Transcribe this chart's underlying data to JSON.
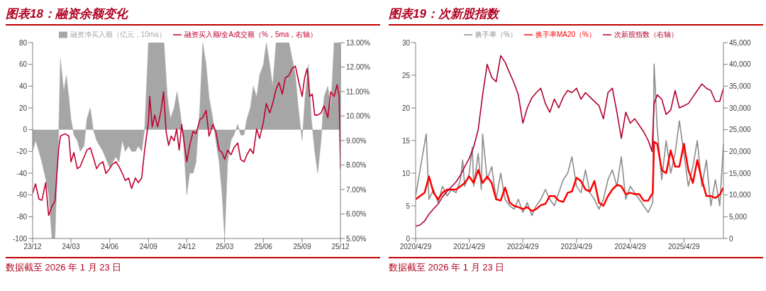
{
  "chart_data": [
    {
      "type": "area",
      "title": "图表18：融资余额变化",
      "legend": "top",
      "annotations": [
        "数据截至 2026 年 1 月 23 日"
      ],
      "xlim": [
        "2023-12-01",
        "2025-12-01"
      ],
      "xticks": [
        {
          "value": "2023-12-01",
          "label": "23/12"
        },
        {
          "value": "2024-03-01",
          "label": "24/03"
        },
        {
          "value": "2024-06-01",
          "label": "24/06"
        },
        {
          "value": "2024-09-01",
          "label": "24/09"
        },
        {
          "value": "2024-12-01",
          "label": "24/12"
        },
        {
          "value": "2025-03-01",
          "label": "25/03"
        },
        {
          "value": "2025-06-01",
          "label": "25/06"
        },
        {
          "value": "2025-09-01",
          "label": "25/09"
        },
        {
          "value": "2025-12-01",
          "label": "25/12"
        }
      ],
      "ylim": [
        -100,
        80
      ],
      "yticks": [
        -100,
        -80,
        -60,
        -40,
        -20,
        0,
        20,
        40,
        60,
        80
      ],
      "y2lim": [
        5,
        13
      ],
      "y2ticks": [
        {
          "value": 5,
          "label": "5.00%"
        },
        {
          "value": 6,
          "label": "6.00%"
        },
        {
          "value": 7,
          "label": "7.00%"
        },
        {
          "value": 8,
          "label": "8.00%"
        },
        {
          "value": 9,
          "label": "9.00%"
        },
        {
          "value": 10,
          "label": "10.00%"
        },
        {
          "value": 11,
          "label": "11.00%"
        },
        {
          "value": 12,
          "label": "12.00%"
        },
        {
          "value": 13,
          "label": "13.00%"
        }
      ],
      "series": [
        {
          "name": "融资净买入额（亿元，10ma）",
          "color": "#a6a6a6",
          "x": [
            "2023-12-01",
            "2023-12-08",
            "2023-12-16",
            "2023-12-23",
            "2024-01-01",
            "2024-01-08",
            "2024-01-16",
            "2024-01-23",
            "2024-02-01",
            "2024-02-05",
            "2024-02-13",
            "2024-02-19",
            "2024-02-25",
            "2024-03-01",
            "2024-03-08",
            "2024-03-16",
            "2024-03-23",
            "2024-04-01",
            "2024-04-08",
            "2024-04-16",
            "2024-04-23",
            "2024-05-01",
            "2024-05-16",
            "2024-06-01",
            "2024-06-08",
            "2024-06-16",
            "2024-06-23",
            "2024-07-01",
            "2024-07-08",
            "2024-07-16",
            "2024-07-23",
            "2024-08-01",
            "2024-08-08",
            "2024-08-16",
            "2024-08-23",
            "2024-09-01",
            "2024-09-16",
            "2024-10-01",
            "2024-10-08",
            "2024-10-16",
            "2024-10-23",
            "2024-11-01",
            "2024-11-08",
            "2024-11-16",
            "2024-11-23",
            "2024-12-01",
            "2024-12-08",
            "2024-12-16",
            "2024-12-23",
            "2025-01-01",
            "2025-01-08",
            "2025-01-16",
            "2025-01-23",
            "2025-02-01",
            "2025-02-08",
            "2025-02-16",
            "2025-02-23",
            "2025-03-01",
            "2025-03-08",
            "2025-03-16",
            "2025-03-23",
            "2025-04-01",
            "2025-04-08",
            "2025-04-16",
            "2025-04-23",
            "2025-05-01",
            "2025-05-08",
            "2025-05-16",
            "2025-05-23",
            "2025-06-01",
            "2025-06-08",
            "2025-06-16",
            "2025-06-23",
            "2025-07-01",
            "2025-07-16",
            "2025-08-01",
            "2025-08-16",
            "2025-08-23",
            "2025-09-01",
            "2025-09-08",
            "2025-09-16",
            "2025-09-23",
            "2025-10-01",
            "2025-10-08",
            "2025-10-16",
            "2025-10-23",
            "2025-11-01",
            "2025-11-08",
            "2025-11-16",
            "2025-12-01"
          ],
          "values": [
            -20,
            -10,
            -20,
            -30,
            -45,
            -60,
            -100,
            -100,
            0,
            65,
            35,
            50,
            30,
            10,
            -5,
            -10,
            -20,
            -15,
            10,
            20,
            0,
            -10,
            -20,
            -35,
            -30,
            -25,
            -30,
            -10,
            -20,
            -15,
            -20,
            -20,
            -15,
            -20,
            0,
            80,
            80,
            80,
            80,
            30,
            10,
            20,
            35,
            15,
            -10,
            -60,
            -40,
            -40,
            -30,
            20,
            80,
            60,
            30,
            10,
            -10,
            -30,
            -60,
            -100,
            -30,
            -10,
            -5,
            5,
            -5,
            -5,
            10,
            20,
            40,
            30,
            50,
            60,
            80,
            60,
            40,
            80,
            80,
            80,
            50,
            20,
            -10,
            30,
            60,
            10,
            -20,
            -40,
            -10,
            30,
            40,
            20,
            80,
            80
          ]
        },
        {
          "name": "融资买入额/全A成交额（%，5ma，右轴）",
          "type": "line",
          "axis": "y2",
          "color": "#c0002f",
          "x": [
            "2023-12-01",
            "2023-12-08",
            "2023-12-16",
            "2023-12-23",
            "2024-01-01",
            "2024-01-08",
            "2024-01-16",
            "2024-01-23",
            "2024-02-01",
            "2024-02-05",
            "2024-02-16",
            "2024-02-25",
            "2024-03-01",
            "2024-03-08",
            "2024-03-16",
            "2024-03-23",
            "2024-04-01",
            "2024-04-08",
            "2024-04-16",
            "2024-04-23",
            "2024-05-01",
            "2024-05-08",
            "2024-05-16",
            "2024-05-23",
            "2024-06-01",
            "2024-06-08",
            "2024-06-16",
            "2024-06-23",
            "2024-07-01",
            "2024-07-08",
            "2024-07-16",
            "2024-07-23",
            "2024-08-01",
            "2024-08-08",
            "2024-08-16",
            "2024-08-23",
            "2024-09-01",
            "2024-09-04",
            "2024-09-10",
            "2024-09-16",
            "2024-09-23",
            "2024-10-01",
            "2024-10-07",
            "2024-10-13",
            "2024-10-19",
            "2024-10-25",
            "2024-11-01",
            "2024-11-07",
            "2024-11-13",
            "2024-11-19",
            "2024-11-25",
            "2024-12-01",
            "2024-12-08",
            "2024-12-16",
            "2024-12-23",
            "2025-01-01",
            "2025-01-08",
            "2025-01-16",
            "2025-01-23",
            "2025-02-01",
            "2025-02-08",
            "2025-02-16",
            "2025-02-23",
            "2025-03-01",
            "2025-03-08",
            "2025-03-16",
            "2025-03-23",
            "2025-04-01",
            "2025-04-08",
            "2025-04-16",
            "2025-04-23",
            "2025-05-01",
            "2025-05-08",
            "2025-05-16",
            "2025-05-23",
            "2025-06-01",
            "2025-06-08",
            "2025-06-16",
            "2025-06-23",
            "2025-07-01",
            "2025-07-08",
            "2025-07-16",
            "2025-07-23",
            "2025-08-01",
            "2025-08-08",
            "2025-08-16",
            "2025-08-23",
            "2025-09-01",
            "2025-09-07",
            "2025-09-13",
            "2025-09-19",
            "2025-09-25",
            "2025-10-01",
            "2025-10-08",
            "2025-10-16",
            "2025-10-23",
            "2025-11-01",
            "2025-11-08",
            "2025-11-16",
            "2025-11-23",
            "2025-11-28",
            "2025-12-01"
          ],
          "values": [
            6.85,
            7.23,
            6.61,
            6.56,
            7.28,
            5.94,
            6.32,
            6.51,
            8.7,
            9.18,
            9.28,
            9.18,
            8.13,
            8.51,
            7.85,
            7.94,
            8.32,
            8.61,
            8.7,
            8.32,
            7.85,
            8.04,
            8.13,
            7.66,
            7.85,
            8.04,
            8.13,
            7.94,
            7.66,
            7.37,
            7.47,
            7.04,
            7.47,
            7.28,
            7.47,
            8.61,
            9.75,
            10.8,
            9.56,
            10.04,
            9.56,
            10.23,
            10.99,
            9.37,
            8.8,
            9.18,
            8.99,
            9.47,
            8.61,
            9.66,
            8.9,
            8.13,
            8.8,
            9.37,
            9.28,
            9.85,
            9.94,
            10.23,
            9.18,
            9.66,
            9.37,
            8.61,
            8.51,
            8.23,
            8.61,
            8.42,
            8.7,
            8.9,
            8.23,
            8.13,
            8.42,
            8.66,
            8.47,
            9.47,
            9.09,
            9.75,
            10.51,
            10.13,
            10.51,
            11.09,
            11.37,
            10.9,
            11.56,
            11.66,
            11.94,
            12.04,
            11.47,
            10.8,
            11.56,
            11.94,
            10.8,
            10.9,
            10.04,
            10.04,
            10.13,
            10.42,
            9.94,
            10.99,
            10.8,
            11.28,
            10.8,
            7.85
          ]
        }
      ]
    },
    {
      "type": "line",
      "title": "图表19：次新股指数",
      "legend": "top",
      "annotations": [
        "数据截至 2026 年 1 月 23 日"
      ],
      "xlim": [
        "2020-04-29",
        "2026-01-23"
      ],
      "xticks": [
        {
          "value": "2020-04-29",
          "label": "2020/4/29"
        },
        {
          "value": "2021-04-29",
          "label": "2021/4/29"
        },
        {
          "value": "2022-04-29",
          "label": "2022/4/29"
        },
        {
          "value": "2023-04-29",
          "label": "2023/4/29"
        },
        {
          "value": "2024-04-29",
          "label": "2024/4/29"
        },
        {
          "value": "2025-04-29",
          "label": "2025/4/29"
        }
      ],
      "ylim": [
        0,
        30
      ],
      "yticks": [
        0,
        5,
        10,
        15,
        20,
        25,
        30
      ],
      "y2lim": [
        0,
        45000
      ],
      "y2ticks": [
        {
          "value": 0,
          "label": "0"
        },
        {
          "value": 5000,
          "label": "5,000"
        },
        {
          "value": 10000,
          "label": "10,000"
        },
        {
          "value": 15000,
          "label": "15,000"
        },
        {
          "value": 20000,
          "label": "20,000"
        },
        {
          "value": 25000,
          "label": "25,000"
        },
        {
          "value": 30000,
          "label": "30,000"
        },
        {
          "value": 35000,
          "label": "35,000"
        },
        {
          "value": 40000,
          "label": "40,000"
        },
        {
          "value": 45000,
          "label": "45,000"
        }
      ],
      "series": [
        {
          "name": "换手率（%）",
          "color": "#8c8c8c",
          "x": [
            "2020-04-29",
            "2020-07-10",
            "2020-07-29",
            "2020-08-29",
            "2020-09-29",
            "2020-10-29",
            "2020-11-29",
            "2020-12-29",
            "2021-01-29",
            "2021-02-28",
            "2021-03-15",
            "2021-03-29",
            "2021-04-29",
            "2021-05-20",
            "2021-05-29",
            "2021-06-29",
            "2021-07-20",
            "2021-07-29",
            "2021-08-29",
            "2021-09-29",
            "2021-10-29",
            "2021-11-29",
            "2021-12-29",
            "2022-01-29",
            "2022-02-28",
            "2022-03-29",
            "2022-04-29",
            "2022-05-29",
            "2022-06-29",
            "2022-07-29",
            "2022-08-29",
            "2022-09-29",
            "2022-10-29",
            "2022-11-29",
            "2022-12-29",
            "2023-01-29",
            "2023-02-28",
            "2023-03-29",
            "2023-04-29",
            "2023-05-29",
            "2023-06-29",
            "2023-07-29",
            "2023-08-29",
            "2023-09-29",
            "2023-10-29",
            "2023-11-29",
            "2023-12-29",
            "2024-01-29",
            "2024-02-28",
            "2024-03-29",
            "2024-04-29",
            "2024-05-29",
            "2024-06-29",
            "2024-07-29",
            "2024-08-29",
            "2024-09-29",
            "2024-10-08",
            "2024-10-29",
            "2024-11-29",
            "2024-12-29",
            "2025-01-29",
            "2025-02-28",
            "2025-03-29",
            "2025-04-29",
            "2025-05-29",
            "2025-06-29",
            "2025-07-29",
            "2025-08-29",
            "2025-09-29",
            "2025-10-29",
            "2025-11-29",
            "2025-12-29",
            "2026-01-23"
          ],
          "values": [
            6.5,
            16,
            6,
            7.5,
            5.5,
            8,
            6.5,
            7.5,
            7,
            9,
            12,
            8,
            10,
            14,
            8,
            13,
            7.5,
            16,
            9,
            11,
            6,
            10,
            6,
            5,
            4.5,
            6,
            4,
            5.5,
            3.5,
            5,
            6,
            7.5,
            6,
            5,
            7,
            9,
            10,
            12.5,
            8,
            7,
            10.5,
            7,
            6,
            4.5,
            6,
            9,
            10.5,
            8,
            12.5,
            6,
            8,
            7,
            6,
            5,
            4,
            5.5,
            26.7,
            17,
            9,
            15,
            10,
            13,
            18,
            13,
            8,
            11,
            15,
            8,
            12,
            5,
            9,
            5,
            14.5
          ]
        },
        {
          "name": "换手率MA20（%）",
          "color": "#ff0000",
          "x": [
            "2020-04-29",
            "2020-05-29",
            "2020-06-29",
            "2020-07-29",
            "2020-08-29",
            "2020-09-29",
            "2020-10-29",
            "2020-11-29",
            "2020-12-29",
            "2021-01-29",
            "2021-02-28",
            "2021-03-29",
            "2021-04-29",
            "2021-05-29",
            "2021-06-29",
            "2021-07-29",
            "2021-08-29",
            "2021-09-29",
            "2021-10-29",
            "2021-11-29",
            "2021-12-29",
            "2022-01-29",
            "2022-02-28",
            "2022-03-29",
            "2022-04-29",
            "2022-05-29",
            "2022-06-29",
            "2022-07-29",
            "2022-08-29",
            "2022-09-29",
            "2022-10-29",
            "2022-11-29",
            "2022-12-29",
            "2023-01-29",
            "2023-02-28",
            "2023-03-29",
            "2023-04-29",
            "2023-05-29",
            "2023-06-29",
            "2023-07-29",
            "2023-08-29",
            "2023-09-29",
            "2023-10-29",
            "2023-11-29",
            "2023-12-29",
            "2024-01-29",
            "2024-02-28",
            "2024-03-29",
            "2024-04-29",
            "2024-05-29",
            "2024-06-29",
            "2024-07-29",
            "2024-08-29",
            "2024-09-29",
            "2024-10-08",
            "2024-10-29",
            "2024-11-29",
            "2024-12-29",
            "2025-01-29",
            "2025-02-28",
            "2025-03-29",
            "2025-04-29",
            "2025-05-29",
            "2025-06-29",
            "2025-07-29",
            "2025-08-29",
            "2025-09-29",
            "2025-10-29",
            "2025-11-29",
            "2025-12-29",
            "2026-01-23"
          ],
          "values": [
            6,
            6.5,
            7,
            9.5,
            7,
            6,
            7,
            7.5,
            7.5,
            7.5,
            8,
            8.5,
            9.5,
            8.5,
            10.5,
            8.5,
            9.5,
            8.5,
            6,
            5.8,
            7.8,
            5.5,
            5,
            4.8,
            4.5,
            4.8,
            4.2,
            4.5,
            5.1,
            5.3,
            6.5,
            6.5,
            5.8,
            5.6,
            7,
            7.2,
            9.3,
            8.8,
            7.5,
            7.2,
            8.8,
            5.5,
            5,
            6.5,
            7.5,
            8.2,
            8,
            6.8,
            7,
            6.8,
            6.8,
            5.8,
            5.8,
            7,
            14.8,
            14.5,
            10.5,
            10,
            13.5,
            11,
            11,
            14.5,
            10.5,
            8.5,
            12,
            9,
            6.5,
            6.5,
            6.2,
            6.7,
            7.8
          ]
        },
        {
          "name": "次新股指数（右轴）",
          "axis": "y2",
          "color": "#b0002f",
          "x": [
            "2020-04-29",
            "2020-05-29",
            "2020-06-29",
            "2020-07-29",
            "2020-08-29",
            "2020-09-29",
            "2020-10-29",
            "2020-11-29",
            "2020-12-29",
            "2021-01-29",
            "2021-02-28",
            "2021-03-29",
            "2021-04-29",
            "2021-05-29",
            "2021-06-29",
            "2021-07-29",
            "2021-08-29",
            "2021-09-29",
            "2021-10-29",
            "2021-11-29",
            "2021-12-29",
            "2022-01-29",
            "2022-02-28",
            "2022-03-29",
            "2022-04-29",
            "2022-05-29",
            "2022-06-29",
            "2022-07-29",
            "2022-08-29",
            "2022-09-29",
            "2022-10-29",
            "2022-11-29",
            "2022-12-29",
            "2023-01-29",
            "2023-02-28",
            "2023-03-29",
            "2023-04-29",
            "2023-05-29",
            "2023-06-29",
            "2023-07-29",
            "2023-08-29",
            "2023-09-29",
            "2023-10-29",
            "2023-11-29",
            "2023-12-29",
            "2024-01-29",
            "2024-02-28",
            "2024-03-29",
            "2024-04-29",
            "2024-05-29",
            "2024-06-29",
            "2024-07-29",
            "2024-08-29",
            "2024-09-24",
            "2024-10-08",
            "2024-10-29",
            "2024-11-29",
            "2024-12-29",
            "2025-01-29",
            "2025-02-28",
            "2025-03-29",
            "2025-04-29",
            "2025-05-29",
            "2025-06-29",
            "2025-07-29",
            "2025-08-29",
            "2025-09-29",
            "2025-10-29",
            "2025-11-29",
            "2025-12-29",
            "2026-01-23"
          ],
          "values": [
            2800,
            3100,
            4000,
            5600,
            6800,
            7900,
            9600,
            10800,
            11900,
            13000,
            14500,
            16500,
            18400,
            21000,
            25000,
            33000,
            40000,
            37000,
            36000,
            42000,
            40500,
            38000,
            35700,
            33000,
            26500,
            30000,
            32300,
            33500,
            34500,
            31000,
            29000,
            32000,
            30000,
            32500,
            34000,
            33500,
            34500,
            32000,
            33500,
            32500,
            31500,
            30500,
            27500,
            33500,
            34500,
            29000,
            23000,
            29000,
            26500,
            27500,
            26000,
            24500,
            22500,
            20000,
            31000,
            33000,
            32000,
            28500,
            29500,
            34000,
            30000,
            30500,
            31000,
            32500,
            34000,
            35500,
            34500,
            34000,
            31500,
            31500,
            34500
          ]
        }
      ]
    }
  ]
}
